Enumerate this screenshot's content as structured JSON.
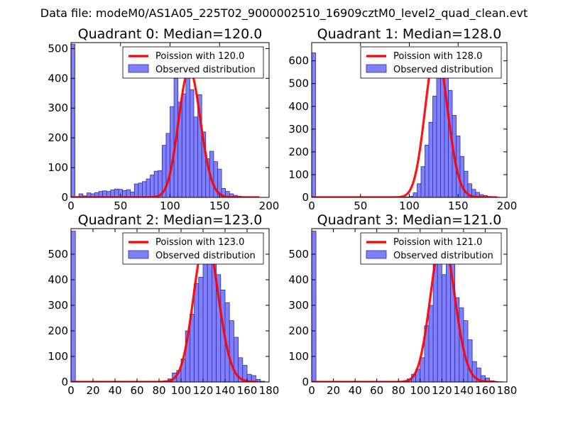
{
  "figure_title": "Data file: modeM0/AS1A05_225T02_9000002510_16909cztM0_level2_quad_clean.evt",
  "colors": {
    "bar_fill": "#8080ff",
    "bar_edge": "#2d2d9e",
    "curve": "#ff0000"
  },
  "chart_data": [
    {
      "type": "bar",
      "title": "Quadrant 0: Median=120.0",
      "xlabel": "",
      "ylabel": "",
      "xlim": [
        0,
        200
      ],
      "ylim": [
        0,
        520
      ],
      "xticks": [
        0,
        50,
        100,
        150,
        200
      ],
      "yticks": [
        0,
        100,
        200,
        300,
        400,
        500
      ],
      "bin_width": 4,
      "bins_start": [
        0,
        4,
        8,
        12,
        16,
        20,
        24,
        28,
        32,
        36,
        40,
        44,
        48,
        52,
        56,
        60,
        64,
        68,
        72,
        76,
        80,
        84,
        88,
        92,
        96,
        100,
        104,
        108,
        112,
        116,
        120,
        124,
        128,
        132,
        136,
        140,
        144,
        148,
        152,
        156,
        160,
        164,
        168,
        172,
        176,
        180,
        184
      ],
      "counts": [
        515,
        3,
        12,
        5,
        15,
        12,
        16,
        20,
        22,
        20,
        25,
        28,
        27,
        23,
        26,
        18,
        45,
        48,
        53,
        62,
        75,
        88,
        90,
        175,
        215,
        305,
        400,
        320,
        348,
        460,
        362,
        270,
        345,
        220,
        130,
        155,
        120,
        95,
        30,
        20,
        12,
        7,
        4,
        2,
        1,
        0,
        0
      ],
      "series": [
        {
          "name": "Observed distribution",
          "kind": "histogram"
        },
        {
          "name": "Poission with 120.0",
          "kind": "poisson",
          "mean": 120.0,
          "peak": 430
        }
      ],
      "legend_position": "top-right"
    },
    {
      "type": "bar",
      "title": "Quadrant 1: Median=128.0",
      "xlabel": "",
      "ylabel": "",
      "xlim": [
        0,
        200
      ],
      "ylim": [
        0,
        680
      ],
      "xticks": [
        0,
        50,
        100,
        150,
        200
      ],
      "yticks": [
        0,
        100,
        200,
        300,
        400,
        500,
        600
      ],
      "bin_width": 4,
      "bins_start": [
        0,
        4,
        8,
        12,
        16,
        20,
        24,
        28,
        32,
        36,
        40,
        44,
        48,
        52,
        56,
        60,
        64,
        68,
        72,
        76,
        80,
        84,
        88,
        92,
        96,
        100,
        104,
        108,
        112,
        116,
        120,
        124,
        128,
        132,
        136,
        140,
        144,
        148,
        152,
        156,
        160,
        164,
        168,
        172,
        176,
        180,
        184,
        188,
        192
      ],
      "counts": [
        635,
        2,
        1,
        1,
        1,
        1,
        1,
        1,
        1,
        1,
        1,
        1,
        1,
        1,
        1,
        1,
        1,
        1,
        1,
        1,
        1,
        1,
        1,
        1,
        2,
        5,
        20,
        60,
        135,
        230,
        330,
        445,
        550,
        620,
        540,
        470,
        360,
        270,
        180,
        115,
        60,
        35,
        22,
        12,
        8,
        4,
        2,
        1,
        0
      ],
      "series": [
        {
          "name": "Observed distribution",
          "kind": "histogram"
        },
        {
          "name": "Poission with 128.0",
          "kind": "poisson",
          "mean": 128.0,
          "peak": 650
        }
      ],
      "legend_position": "top-right"
    },
    {
      "type": "bar",
      "title": "Quadrant 2: Median=123.0",
      "xlabel": "",
      "ylabel": "",
      "xlim": [
        0,
        180
      ],
      "ylim": [
        0,
        600
      ],
      "xticks": [
        0,
        20,
        40,
        60,
        80,
        100,
        120,
        140,
        160,
        180
      ],
      "yticks": [
        0,
        100,
        200,
        300,
        400,
        500
      ],
      "bin_width": 4,
      "bins_start": [
        0,
        4,
        8,
        12,
        16,
        20,
        24,
        28,
        32,
        36,
        40,
        44,
        48,
        52,
        56,
        60,
        64,
        68,
        72,
        76,
        80,
        84,
        88,
        92,
        96,
        100,
        104,
        108,
        112,
        116,
        120,
        124,
        128,
        132,
        136,
        140,
        144,
        148,
        152,
        156,
        160,
        164,
        168,
        172
      ],
      "counts": [
        590,
        2,
        1,
        1,
        1,
        1,
        1,
        1,
        1,
        1,
        1,
        1,
        1,
        1,
        1,
        1,
        1,
        1,
        1,
        1,
        2,
        5,
        12,
        35,
        45,
        90,
        200,
        265,
        385,
        410,
        470,
        555,
        500,
        420,
        360,
        310,
        240,
        175,
        95,
        65,
        30,
        25,
        10,
        3
      ],
      "series": [
        {
          "name": "Observed distribution",
          "kind": "histogram"
        },
        {
          "name": "Poission with 123.0",
          "kind": "poisson",
          "mean": 123.0,
          "peak": 565
        }
      ],
      "legend_position": "top-right"
    },
    {
      "type": "bar",
      "title": "Quadrant 3: Median=121.0",
      "xlabel": "",
      "ylabel": "",
      "xlim": [
        0,
        180
      ],
      "ylim": [
        0,
        600
      ],
      "xticks": [
        0,
        20,
        40,
        60,
        80,
        100,
        120,
        140,
        160,
        180
      ],
      "yticks": [
        0,
        100,
        200,
        300,
        400,
        500
      ],
      "bin_width": 4,
      "bins_start": [
        0,
        4,
        8,
        12,
        16,
        20,
        24,
        28,
        32,
        36,
        40,
        44,
        48,
        52,
        56,
        60,
        64,
        68,
        72,
        76,
        80,
        84,
        88,
        92,
        96,
        100,
        104,
        108,
        112,
        116,
        120,
        124,
        128,
        132,
        136,
        140,
        144,
        148,
        152,
        156,
        160,
        164,
        168,
        172
      ],
      "counts": [
        590,
        2,
        1,
        1,
        1,
        1,
        1,
        1,
        1,
        1,
        1,
        1,
        1,
        1,
        1,
        1,
        1,
        1,
        1,
        1,
        2,
        5,
        12,
        30,
        50,
        95,
        220,
        300,
        510,
        465,
        420,
        555,
        470,
        330,
        290,
        240,
        165,
        80,
        55,
        25,
        15,
        5,
        2,
        1
      ],
      "series": [
        {
          "name": "Observed distribution",
          "kind": "histogram"
        },
        {
          "name": "Poission with 121.0",
          "kind": "poisson",
          "mean": 121.0,
          "peak": 565
        }
      ],
      "legend_position": "top-right"
    }
  ]
}
